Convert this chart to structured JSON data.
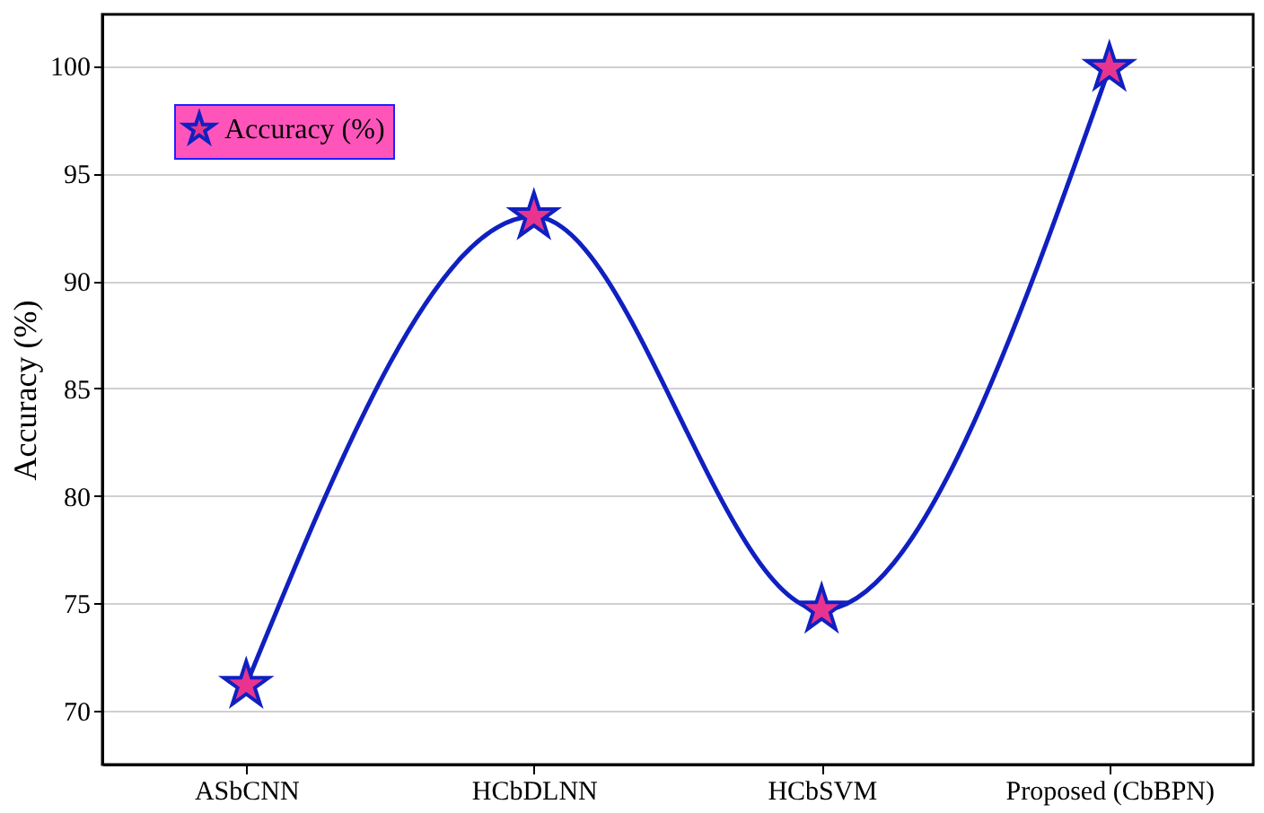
{
  "chart_data": {
    "type": "line",
    "ylabel": "Accuracy (%)",
    "categories": [
      "ASbCNN",
      "HCbDLNN",
      "HCbSVM",
      "Proposed (CbBPN)"
    ],
    "series": [
      {
        "name": "Accuracy (%)",
        "color": "#1020c0",
        "values": [
          71.2,
          93.0,
          74.7,
          99.9
        ]
      }
    ],
    "ylim": [
      67.5,
      102.4
    ],
    "yticks": [
      70,
      75,
      80,
      85,
      90,
      95,
      100
    ],
    "grid": "y",
    "legend": "top left",
    "marker": "star",
    "line_style": "solid"
  }
}
